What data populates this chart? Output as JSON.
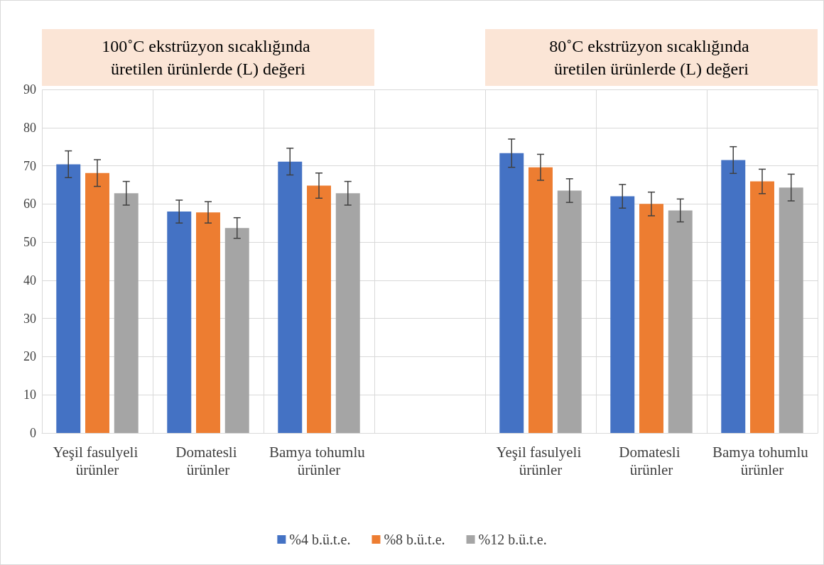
{
  "chart_data": {
    "type": "bar",
    "categories": [
      "Yeşil fasulyeli ürünler",
      "Domatesli ürünler",
      "Bamya tohumlu ürünler",
      null,
      "Yeşil fasulyeli ürünler",
      "Domatesli ürünler",
      "Bamya tohumlu ürünler"
    ],
    "series": [
      {
        "name": "%4 b.ü.t.e.",
        "color": "#4472c4",
        "values": [
          70.4,
          58.0,
          71.1,
          0,
          73.3,
          62.0,
          71.5
        ],
        "errors": [
          3.5,
          3.0,
          3.5,
          null,
          3.7,
          3.1,
          3.5
        ]
      },
      {
        "name": "%8 b.ü.t.e.",
        "color": "#ed7d31",
        "values": [
          68.1,
          57.8,
          64.8,
          0,
          69.6,
          60.0,
          65.9
        ],
        "errors": [
          3.5,
          2.8,
          3.3,
          null,
          3.4,
          3.1,
          3.2
        ]
      },
      {
        "name": "%12 b.ü.t.e.",
        "color": "#a5a5a5",
        "values": [
          62.8,
          53.7,
          62.8,
          0,
          63.5,
          58.3,
          64.3
        ],
        "errors": [
          3.1,
          2.7,
          3.1,
          null,
          3.1,
          3.0,
          3.5
        ]
      }
    ],
    "ylim": [
      0,
      90
    ],
    "yticks": [
      0,
      10,
      20,
      30,
      40,
      50,
      60,
      70,
      80,
      90
    ],
    "grid": true,
    "legend": "bottom",
    "annotations": [
      "100˚C ekstrüzyon sıcaklığında üretilen ürünlerde (L) değeri",
      "80˚C ekstrüzyon sıcaklığında üretilen ürünlerde (L) değeri"
    ]
  }
}
